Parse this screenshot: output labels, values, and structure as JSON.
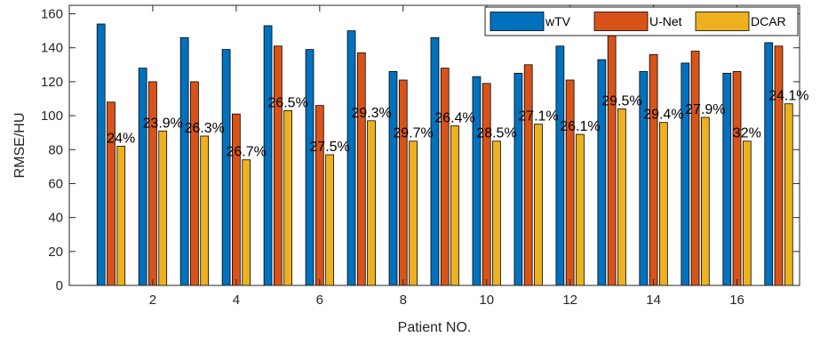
{
  "chart_data": {
    "type": "bar",
    "xlabel": "Patient NO.",
    "ylabel": "RMSE/HU",
    "ylim": [
      0,
      165
    ],
    "yticks": [
      0,
      20,
      40,
      60,
      80,
      100,
      120,
      140,
      160
    ],
    "xticks": [
      2,
      4,
      6,
      8,
      10,
      12,
      14,
      16
    ],
    "categories": [
      1,
      2,
      3,
      4,
      5,
      6,
      7,
      8,
      9,
      10,
      11,
      12,
      13,
      14,
      15,
      16,
      17
    ],
    "series": [
      {
        "name": "wTV",
        "color": "#0072BD",
        "values": [
          154,
          128,
          146,
          139,
          153,
          139,
          150,
          126,
          146,
          123,
          125,
          141,
          133,
          126,
          131,
          125,
          143
        ]
      },
      {
        "name": "U-Net",
        "color": "#D95319",
        "values": [
          108,
          120,
          120,
          101,
          141,
          106,
          137,
          121,
          128,
          119,
          130,
          121,
          147,
          136,
          138,
          126,
          141
        ]
      },
      {
        "name": "DCAR",
        "color": "#EDB120",
        "values": [
          82,
          91,
          88,
          74,
          103,
          77,
          97,
          85,
          94,
          85,
          95,
          89,
          104,
          96,
          99,
          85,
          107
        ]
      }
    ],
    "annotations": [
      "24%",
      "23.9%",
      "26.3%",
      "26.7%",
      "26.5%",
      "27.5%",
      "29.3%",
      "29.7%",
      "26.4%",
      "28.5%",
      "27.1%",
      "26.1%",
      "29.5%",
      "29.4%",
      "27.9%",
      "32%",
      "24.1%"
    ],
    "grid": false,
    "legend_position": "top-right"
  }
}
